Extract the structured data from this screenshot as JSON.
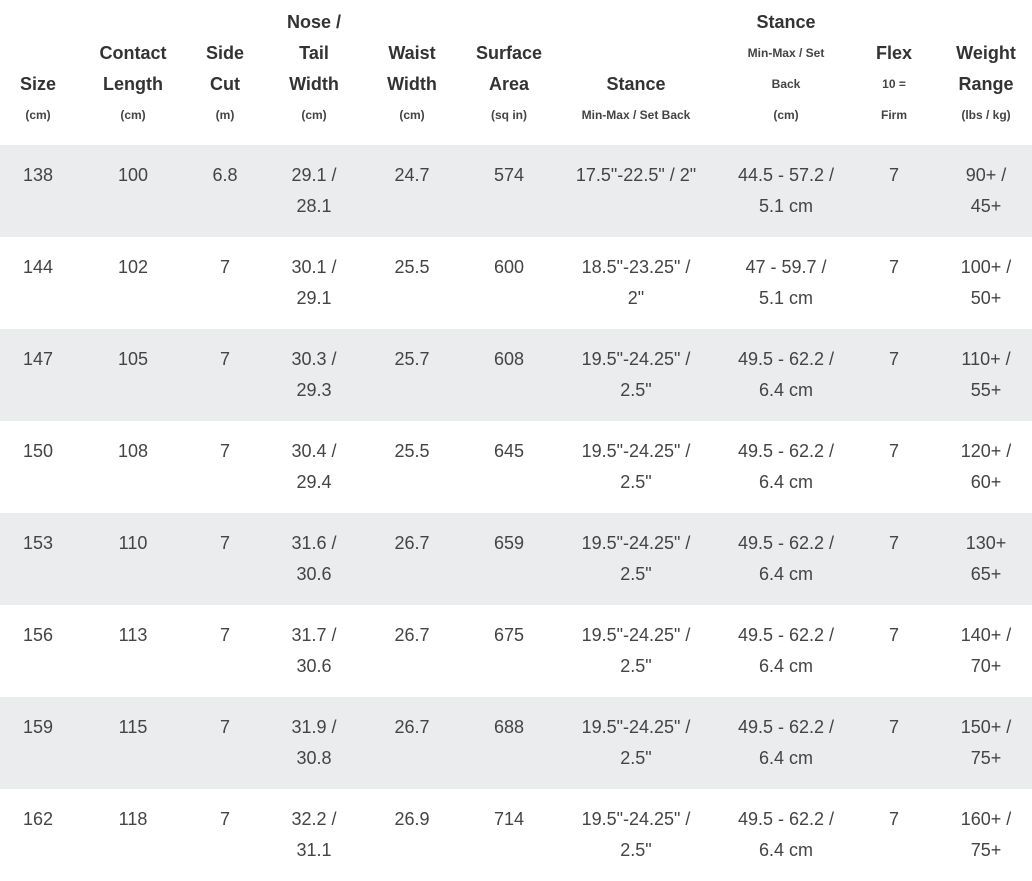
{
  "table": {
    "columns": [
      {
        "lines": [
          "Size"
        ],
        "unit": "(cm)"
      },
      {
        "lines": [
          "Contact",
          "Length"
        ],
        "unit": "(cm)"
      },
      {
        "lines": [
          "Side",
          "Cut"
        ],
        "unit": "(m)"
      },
      {
        "lines": [
          "Nose /",
          "Tail",
          "Width"
        ],
        "unit": "(cm)"
      },
      {
        "lines": [
          "Waist",
          "Width"
        ],
        "unit": "(cm)"
      },
      {
        "lines": [
          "Surface",
          "Area"
        ],
        "unit": "(sq in)"
      },
      {
        "lines": [
          "Stance"
        ],
        "unit": "Min-Max / Set Back"
      },
      {
        "lines": [
          "Stance"
        ],
        "sublines": [
          "Min-Max / Set",
          "Back"
        ],
        "unit": "(cm)"
      },
      {
        "lines": [
          "Flex"
        ],
        "sublines": [
          "10 ="
        ],
        "unit": "Firm"
      },
      {
        "lines": [
          "Weight",
          "Range"
        ],
        "unit": "(lbs / kg)"
      }
    ],
    "rows": [
      [
        "138",
        "100",
        "6.8",
        "29.1 /\n28.1",
        "24.7",
        "574",
        "17.5\"-22.5\" / 2\"",
        "44.5 - 57.2 /\n5.1 cm",
        "7",
        "90+ /\n45+"
      ],
      [
        "144",
        "102",
        "7",
        "30.1 /\n29.1",
        "25.5",
        "600",
        "18.5\"-23.25\" /\n2\"",
        "47 - 59.7 /\n5.1 cm",
        "7",
        "100+ /\n50+"
      ],
      [
        "147",
        "105",
        "7",
        "30.3 /\n29.3",
        "25.7",
        "608",
        "19.5\"-24.25\" /\n2.5\"",
        "49.5 - 62.2 /\n6.4 cm",
        "7",
        "110+ /\n55+"
      ],
      [
        "150",
        "108",
        "7",
        "30.4 /\n29.4",
        "25.5",
        "645",
        "19.5\"-24.25\" /\n2.5\"",
        "49.5 - 62.2 /\n6.4 cm",
        "7",
        "120+ /\n60+"
      ],
      [
        "153",
        "110",
        "7",
        "31.6 /\n30.6",
        "26.7",
        "659",
        "19.5\"-24.25\" /\n2.5\"",
        "49.5 - 62.2 /\n6.4 cm",
        "7",
        "130+\n65+"
      ],
      [
        "156",
        "113",
        "7",
        "31.7 /\n30.6",
        "26.7",
        "675",
        "19.5\"-24.25\" /\n2.5\"",
        "49.5 - 62.2 /\n6.4 cm",
        "7",
        "140+ /\n70+"
      ],
      [
        "159",
        "115",
        "7",
        "31.9 /\n30.8",
        "26.7",
        "688",
        "19.5\"-24.25\" /\n2.5\"",
        "49.5 - 62.2 /\n6.4 cm",
        "7",
        "150+ /\n75+"
      ],
      [
        "162",
        "118",
        "7",
        "32.2 /\n31.1",
        "26.9",
        "714",
        "19.5\"-24.25\" /\n2.5\"",
        "49.5 - 62.2 /\n6.4 cm",
        "7",
        "160+ /\n75+"
      ]
    ],
    "stripe_color": "#ebecee"
  }
}
